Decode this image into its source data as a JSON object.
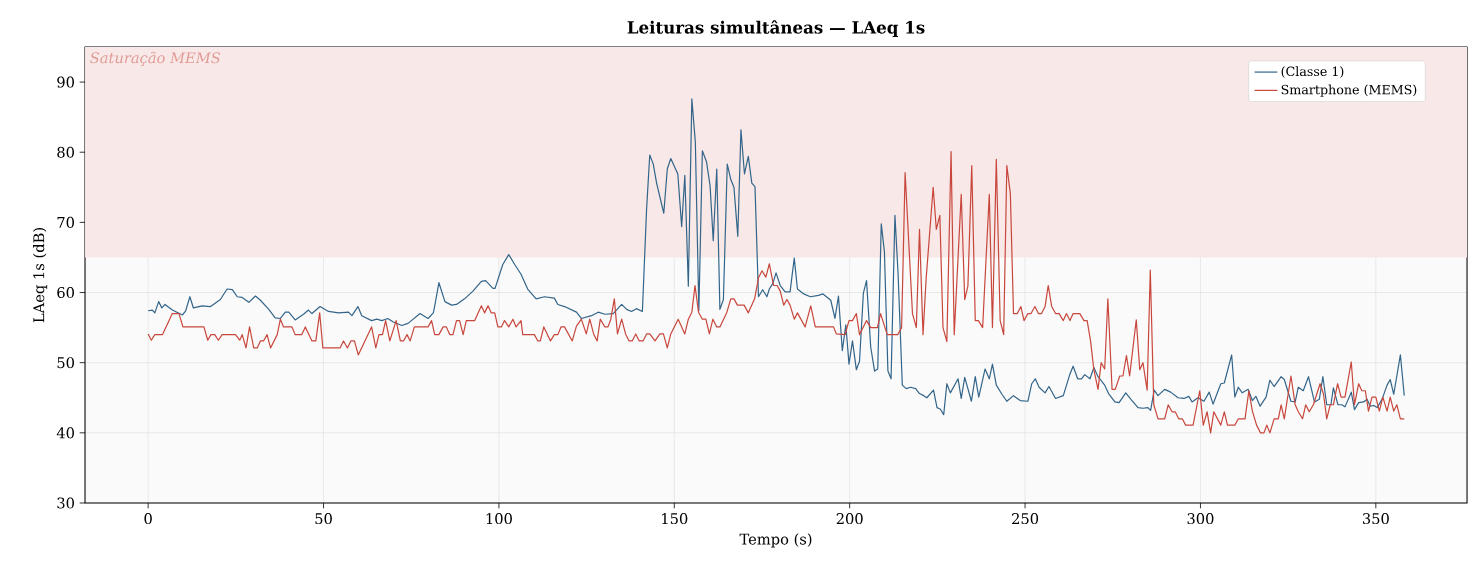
{
  "chart_data": {
    "type": "line",
    "title": "Leituras simultâneas — LAeq 1s",
    "xlabel": "Tempo (s)",
    "ylabel": "LAeq 1s (dB)",
    "xlim": [
      -18,
      376
    ],
    "ylim": [
      30,
      95
    ],
    "xticks": [
      0,
      50,
      100,
      150,
      200,
      250,
      300,
      350
    ],
    "yticks": [
      30,
      40,
      50,
      60,
      70,
      80,
      90
    ],
    "grid": true,
    "legend": "top right",
    "line_style": "solid",
    "bands": [
      {
        "axis": "y",
        "from": 65,
        "to": 95,
        "label": "Saturação MEMS",
        "color": "#f8e8e8"
      }
    ],
    "series": [
      {
        "name": "(Classe 1)",
        "color": "#33658a",
        "x": [
          0,
          1.2,
          1.9,
          3,
          3.9,
          4.8,
          6.9,
          9.8,
          10.7,
          11.9,
          12.9,
          15.4,
          17.8,
          20.6,
          22.5,
          24,
          25.4,
          26.8,
          28.7,
          30.6,
          32,
          34.4,
          36.2,
          37.7,
          39.1,
          40.1,
          41.9,
          44.3,
          45.7,
          46.7,
          49,
          51.4,
          54.3,
          57.1,
          58.1,
          59.8,
          60.9,
          63.7,
          65.2,
          66.6,
          68.3,
          69.9,
          72.3,
          74.1,
          77.5,
          79.8,
          81.3,
          81.7,
          82.9,
          84.6,
          86.5,
          87.9,
          90.2,
          92.6,
          95,
          96.2,
          98.3,
          98.9,
          101.1,
          102.8,
          104.5,
          106.3,
          108.2,
          110.6,
          113,
          115.8,
          116.8,
          118.7,
          122.1,
          123.5,
          126.4,
          128.3,
          130.2,
          132.6,
          135,
          136.4,
          137.8,
          139.2,
          140.9,
          142.1,
          143,
          144,
          145,
          147,
          148,
          149,
          151,
          152.1,
          153,
          154,
          155,
          156,
          157,
          158,
          159.2,
          160.2,
          161.1,
          162.1,
          163,
          164,
          165.1,
          166.1,
          167,
          168.1,
          169,
          170,
          171.1,
          172.1,
          173,
          174,
          175.2,
          176.4,
          177.1,
          178.1,
          179,
          180.2,
          181.6,
          183,
          184.2,
          185.1,
          186.9,
          188.8,
          191.1,
          192.4,
          194.6,
          195.8,
          196.8,
          197.9,
          198.9,
          199.8,
          200.8,
          201.9,
          202.8,
          203.9,
          204.8,
          206,
          207.1,
          208,
          209,
          209.9,
          210.9,
          211.8,
          212.9,
          213.8,
          215,
          216.1,
          217.3,
          218.8,
          219.9,
          221.1,
          222,
          223.9,
          224.9,
          225.8,
          226.8,
          227.7,
          228.7,
          230.9,
          231.8,
          232.8,
          234.7,
          235.8,
          236.8,
          238.6,
          239.8,
          240.7,
          241.8,
          243.4,
          244.8,
          246.7,
          248.6,
          250.8,
          251.9,
          252.9,
          254,
          255.7,
          256.8,
          258.7,
          260.9,
          262.8,
          263.7,
          265,
          266.1,
          267,
          268.5,
          269.6,
          270.8,
          272.7,
          273.8,
          275.6,
          276.8,
          278.7,
          280.3,
          282.2,
          283.6,
          285,
          285.8,
          286.8,
          287.9,
          289.8,
          291.5,
          293.6,
          295.3,
          296.7,
          297.6,
          299.3,
          301,
          302.5,
          303.6,
          305.8,
          306.8,
          308.9,
          309.8,
          310.8,
          311.9,
          313.6,
          314.8,
          315.8,
          317,
          318.7,
          319.8,
          321,
          323,
          323.9,
          325.8,
          327,
          327.9,
          329.3,
          330.8,
          332.5,
          333.9,
          334.9,
          336,
          337.2,
          337.9,
          339.2,
          340.3,
          341.2,
          343,
          343.9,
          345.1,
          346.5,
          347.5,
          348.4,
          349.4,
          350.4,
          351.8,
          353.2,
          354.1,
          355.1,
          357,
          358.1
        ],
        "values": [
          57.4,
          57.5,
          57.1,
          58.7,
          57.8,
          58.3,
          57.5,
          56.8,
          57.4,
          59.4,
          57.8,
          58.1,
          58,
          59,
          60.5,
          60.4,
          59.4,
          59.3,
          58.6,
          59.5,
          58.9,
          57.6,
          56.4,
          56.3,
          57.2,
          57.2,
          56.1,
          56.9,
          57.5,
          57,
          58,
          57.3,
          57.1,
          57.2,
          56.7,
          58,
          56.7,
          56,
          56.2,
          56,
          56.3,
          55.8,
          55.3,
          55.6,
          57,
          56.3,
          57.1,
          58.1,
          61.4,
          58.7,
          58.2,
          58.3,
          59.1,
          60.2,
          61.6,
          61.7,
          60.6,
          60.6,
          64,
          65.4,
          64,
          62.6,
          60.5,
          59.1,
          59.4,
          59.2,
          58.3,
          58,
          57.2,
          56.3,
          56.7,
          57.2,
          56.9,
          57,
          58.3,
          57.6,
          57.3,
          57.7,
          57.3,
          71.9,
          79.6,
          78.3,
          75.5,
          71.3,
          77.6,
          79.1,
          76.9,
          69.4,
          76.7,
          60.9,
          87.6,
          81.4,
          57.4,
          80.2,
          78.6,
          75.2,
          67.4,
          77.6,
          57.6,
          59,
          78.3,
          76.1,
          75,
          68,
          83.2,
          76.9,
          79.4,
          75.6,
          75.1,
          59.4,
          60.4,
          59.4,
          60.5,
          61.3,
          62.8,
          61,
          60.1,
          60.1,
          64.9,
          60.5,
          59.8,
          59.4,
          59.6,
          59.8,
          58.9,
          56.3,
          59.5,
          51.7,
          55.4,
          49.8,
          53.1,
          49,
          50.2,
          59.9,
          61.7,
          52.2,
          48.8,
          49.1,
          69.8,
          65.8,
          48.8,
          47.7,
          71,
          62.6,
          46.8,
          46.3,
          46.5,
          46.3,
          45.6,
          45.3,
          45,
          46.1,
          43.6,
          43.4,
          42.6,
          47,
          45.7,
          47.7,
          44.9,
          47.9,
          44.5,
          48,
          45.1,
          49.1,
          47.7,
          49.8,
          46.8,
          45.5,
          44.5,
          45.3,
          44.6,
          44.5,
          47,
          47.7,
          46.5,
          45.7,
          46.6,
          44.9,
          45.3,
          48.4,
          49.5,
          47.7,
          47.7,
          48.3,
          47.7,
          49.3,
          48,
          46.8,
          45.6,
          44.4,
          44.3,
          45.7,
          44.7,
          43.6,
          43.5,
          43.6,
          43.2,
          46.1,
          45.3,
          46.2,
          45.8,
          45,
          44.9,
          45.2,
          44.4,
          45,
          44.5,
          45.8,
          44.1,
          47,
          47.1,
          51.1,
          45.1,
          46.5,
          45.7,
          46.2,
          44.6,
          45.2,
          43.8,
          45.1,
          47.5,
          46.6,
          48,
          47.6,
          44.5,
          44.4,
          46.5,
          46,
          48,
          44.4,
          44.8,
          48,
          44,
          44,
          46.4,
          44,
          44,
          43.7,
          45.8,
          43.3,
          44.3,
          44.4,
          44.8,
          43.8,
          43.9,
          43.6,
          44.8,
          46.8,
          47.6,
          45.5,
          51.1,
          45.3
        ]
      },
      {
        "name": "Smartphone (MEMS)",
        "color": "#c8473d",
        "x": [
          0,
          0.9,
          1.9,
          4.1,
          6.9,
          8.8,
          9.9,
          15.9,
          17,
          17.9,
          19,
          20,
          21.1,
          24.9,
          26.1,
          26.8,
          27.9,
          28.9,
          30.1,
          31.1,
          32,
          32.9,
          33.9,
          34.9,
          36.8,
          37.7,
          38.6,
          41,
          41.9,
          43.8,
          44.8,
          46.7,
          47.8,
          48.9,
          49.8,
          54.7,
          55.7,
          56.8,
          57.8,
          58.8,
          59.9,
          63.7,
          64.9,
          65.8,
          66.8,
          67.7,
          68.9,
          70.7,
          71.9,
          72.8,
          73.8,
          74.7,
          75.9,
          79.8,
          80.8,
          81.7,
          82.9,
          84.1,
          85,
          86,
          86.9,
          87.9,
          88.8,
          89.8,
          90.7,
          93.1,
          95,
          95.9,
          96.9,
          97.8,
          98.8,
          99.7,
          100.7,
          101.6,
          102.8,
          104,
          104.9,
          106.3,
          106.8,
          110.1,
          111.1,
          111.8,
          112.8,
          114.7,
          115.8,
          116.8,
          117.7,
          118.7,
          120.9,
          122.1,
          123.5,
          124.9,
          125.9,
          127,
          128,
          128.9,
          130.2,
          131.1,
          131.9,
          132.9,
          133.8,
          135,
          136.1,
          137.1,
          138,
          139,
          140,
          141.1,
          142.1,
          143,
          144.5,
          145.9,
          146.9,
          148,
          149,
          151.1,
          153,
          154,
          155,
          155.9,
          156.9,
          158,
          159,
          160,
          161,
          162.1,
          163,
          165,
          166.1,
          167,
          168,
          169.9,
          171.1,
          172.9,
          174,
          175,
          176.1,
          177.1,
          178.3,
          179.3,
          180.2,
          181.2,
          182.1,
          183,
          184.2,
          185.1,
          187.3,
          188.9,
          190.2,
          195.4,
          196.2,
          198.7,
          199.8,
          200.8,
          201.9,
          202.8,
          204.8,
          206,
          207.9,
          208.8,
          210.7,
          213.7,
          214.8,
          215.8,
          217.9,
          219,
          219.9,
          220.9,
          221.8,
          223.8,
          224.7,
          225.7,
          226.6,
          227.7,
          228.9,
          229.8,
          231.8,
          232.8,
          233.7,
          234.8,
          235.8,
          236.7,
          237.9,
          239.8,
          240.7,
          241.8,
          242.9,
          243.9,
          244.8,
          245.8,
          246.7,
          247.8,
          248.8,
          249.7,
          250.8,
          251.7,
          252.8,
          253.8,
          254.7,
          255.7,
          256.6,
          257.6,
          258.7,
          259.7,
          260.9,
          261.8,
          262.8,
          263.7,
          265.6,
          266.8,
          267.7,
          268.7,
          269.6,
          270.8,
          271.7,
          272.7,
          273.6,
          274.8,
          275.7,
          277,
          277.9,
          278.9,
          279.8,
          281.7,
          282.7,
          283.6,
          284.8,
          285.7,
          286.7,
          287.9,
          289.8,
          290.8,
          291.9,
          292.8,
          293.8,
          294.8,
          295.8,
          297.9,
          299.8,
          300.8,
          301.9,
          302.9,
          303.8,
          305.8,
          306.8,
          307.7,
          309.8,
          310.8,
          312.7,
          313.8,
          314.8,
          316,
          317.1,
          318.1,
          318.9,
          319.8,
          321,
          322.2,
          323,
          323.9,
          325.8,
          327,
          327.9,
          329.1,
          330,
          331,
          332.2,
          334.1,
          335.1,
          336,
          337,
          337.9,
          339.1,
          340.1,
          341.2,
          343,
          343.9,
          345.1,
          346,
          347,
          347.9,
          348.9,
          350,
          351,
          352,
          353.2,
          354.1,
          355.1,
          356,
          357,
          358.1
        ],
        "values": [
          54.1,
          53.2,
          54,
          54,
          57,
          57,
          55.1,
          55.1,
          53.2,
          54,
          54,
          53.2,
          54,
          54,
          53.2,
          54,
          52.1,
          55.1,
          52.1,
          52.1,
          53.1,
          53.1,
          54,
          52.1,
          54,
          56.2,
          55.1,
          55.1,
          54,
          54,
          55.1,
          53.1,
          53.1,
          57.1,
          52.1,
          52.1,
          53.1,
          52.1,
          53.1,
          53.1,
          51.1,
          55.1,
          52.1,
          54,
          54,
          56,
          53.1,
          56,
          53.1,
          53.1,
          54,
          53.1,
          55.1,
          55.1,
          56,
          54,
          54,
          55.1,
          55.1,
          54,
          54,
          56,
          56,
          54,
          56,
          56,
          58.1,
          57.1,
          58.1,
          57.1,
          57.1,
          55.1,
          55.1,
          56,
          55.1,
          56.2,
          55.1,
          56,
          54,
          54,
          53.1,
          53.1,
          55.1,
          53.1,
          54,
          54,
          55.1,
          55.1,
          53.1,
          55.2,
          56.2,
          54.1,
          56.2,
          54.1,
          53.1,
          56.2,
          55.1,
          55.1,
          56.2,
          59.1,
          54.1,
          56.2,
          54.1,
          53.1,
          53.1,
          54.1,
          53.1,
          53.1,
          54.1,
          54.1,
          53.1,
          54.1,
          54.1,
          52.1,
          54.1,
          56.2,
          54.1,
          56.2,
          57.2,
          61,
          57.2,
          56.2,
          56.2,
          54.1,
          56.2,
          55.1,
          55.1,
          57.2,
          59.1,
          59.1,
          58.2,
          58.2,
          57.1,
          59.1,
          62.1,
          63.1,
          62.2,
          64.1,
          61,
          61,
          60.2,
          58.2,
          59,
          58.2,
          56.2,
          57.1,
          55.1,
          58.1,
          55.1,
          55.1,
          54.1,
          54,
          56,
          56,
          57,
          54,
          56,
          55,
          55,
          57,
          54,
          54,
          55,
          77.1,
          57,
          55,
          69,
          54,
          62,
          75,
          69,
          71,
          55,
          53,
          80.1,
          54,
          74,
          59,
          60.9,
          78.1,
          56,
          56,
          55,
          74,
          55,
          79,
          56,
          54,
          78.1,
          74.1,
          57,
          57,
          58,
          56,
          57,
          57,
          58,
          57,
          57,
          58,
          61,
          58,
          57,
          57,
          56,
          57,
          56,
          57,
          57,
          56,
          56,
          53,
          49,
          46.2,
          50,
          49.1,
          59.1,
          46.2,
          46.2,
          48.1,
          48.1,
          51,
          48.1,
          56.1,
          49,
          50,
          46.1,
          63.2,
          44,
          42,
          42,
          44,
          43,
          43,
          42,
          42,
          41.1,
          41.1,
          46,
          41.1,
          43,
          40,
          43,
          41.1,
          43,
          41.1,
          41.1,
          42,
          42,
          46,
          43.1,
          41.1,
          40,
          40,
          41.1,
          40,
          42,
          42,
          44,
          42,
          48.1,
          44,
          43,
          42,
          44,
          43,
          44,
          47,
          45.5,
          42,
          44,
          44,
          47,
          45.1,
          45.1,
          50.1,
          44,
          47,
          46,
          46,
          43.1,
          45.1,
          45.1,
          43.1,
          45.1,
          43.1,
          45.1,
          43.1,
          44,
          42,
          42
        ]
      }
    ]
  }
}
